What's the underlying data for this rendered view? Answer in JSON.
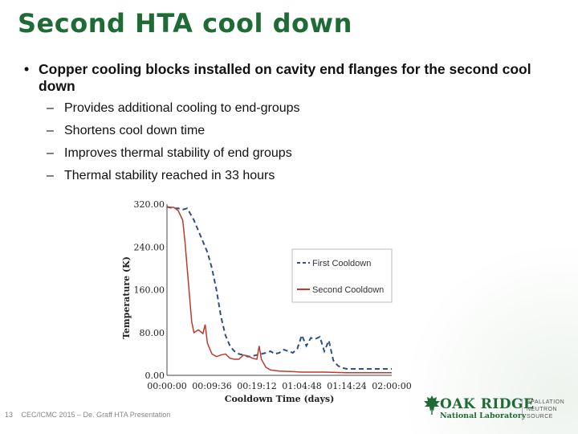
{
  "slide": {
    "title": "Second HTA cool down",
    "bullet": "Copper cooling blocks installed on cavity end flanges for the second cool down",
    "sub_bullets": [
      "Provides additional cooling to end-groups",
      "Shortens cool down time",
      "Improves thermal stability of end groups",
      "Thermal stability reached in 33 hours"
    ],
    "bullet_marker": "•",
    "dash_marker": "–"
  },
  "footer": {
    "page_number": "13",
    "text": "CEC/ICMC 2015 – De. Graff HTA Presentation"
  },
  "logo": {
    "name": "OAK RIDGE",
    "subtitle": "National Laboratory",
    "partner": [
      "SPALLATION",
      "NEUTRON",
      "SOURCE"
    ],
    "color": "#1f6b35"
  },
  "chart_data": {
    "type": "line",
    "xlabel": "Cooldown Time (days)",
    "ylabel": "Temperature (K)",
    "x_ticks": [
      "00:00:00",
      "00:09:36",
      "00:19:12",
      "01:04:48",
      "01:14:24",
      "02:00:00"
    ],
    "y_ticks": [
      "0.00",
      "80.00",
      "160.00",
      "240.00",
      "320.00"
    ],
    "xlim": [
      0,
      1.0
    ],
    "ylim": [
      0,
      320
    ],
    "legend_position": "right",
    "series": [
      {
        "name": "First Cooldown",
        "style": "dashed",
        "color": "#2e4f8a",
        "x": [
          0.0,
          0.03,
          0.05,
          0.07,
          0.09,
          0.1,
          0.12,
          0.14,
          0.16,
          0.18,
          0.2,
          0.22,
          0.24,
          0.26,
          0.28,
          0.3,
          0.32,
          0.34,
          0.36,
          0.38,
          0.4,
          0.42,
          0.44,
          0.46,
          0.48,
          0.5,
          0.52,
          0.54,
          0.56,
          0.58,
          0.6,
          0.62,
          0.64,
          0.66,
          0.68,
          0.7,
          0.72,
          0.74,
          0.76,
          0.78,
          0.8,
          0.85,
          0.9,
          0.95,
          1.0
        ],
        "y": [
          315,
          312,
          312,
          310,
          312,
          305,
          290,
          270,
          250,
          230,
          200,
          160,
          110,
          75,
          55,
          45,
          40,
          38,
          35,
          36,
          38,
          40,
          42,
          45,
          40,
          42,
          48,
          45,
          42,
          50,
          75,
          55,
          70,
          68,
          72,
          45,
          65,
          28,
          18,
          14,
          12,
          12,
          12,
          12,
          12
        ]
      },
      {
        "name": "Second Cooldown",
        "style": "solid",
        "color": "#c0392b",
        "x": [
          0.0,
          0.03,
          0.05,
          0.07,
          0.08,
          0.09,
          0.1,
          0.11,
          0.12,
          0.14,
          0.16,
          0.17,
          0.18,
          0.2,
          0.22,
          0.24,
          0.26,
          0.28,
          0.3,
          0.32,
          0.34,
          0.36,
          0.38,
          0.4,
          0.41,
          0.42,
          0.44,
          0.46,
          0.5,
          0.55,
          0.6,
          0.7,
          0.8,
          0.9,
          1.0
        ],
        "y": [
          314,
          314,
          308,
          290,
          250,
          200,
          150,
          100,
          80,
          85,
          78,
          95,
          60,
          40,
          35,
          38,
          40,
          32,
          30,
          30,
          38,
          36,
          32,
          30,
          55,
          30,
          15,
          10,
          8,
          7,
          6,
          6,
          5,
          5,
          5
        ]
      }
    ]
  }
}
